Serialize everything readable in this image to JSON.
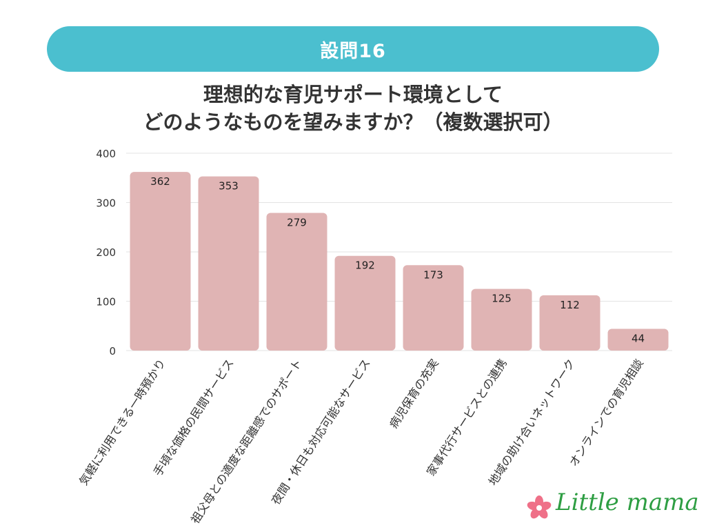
{
  "header": {
    "banner": "設問16"
  },
  "title": {
    "line1": "理想的な育児サポート環境として",
    "line2": "どのようなものを望みますか？（複数選択可）"
  },
  "chart_data": {
    "type": "bar",
    "categories": [
      "気軽に利用できる一時預かり",
      "手頃な価格の民間サービス",
      "祖父母との適度な距離感でのサポート",
      "夜間・休日も対応可能なサービス",
      "病児保育の充実",
      "家事代行サービスとの連携",
      "地域の助け合いネットワーク",
      "オンラインでの育児相談"
    ],
    "values": [
      362,
      353,
      279,
      192,
      173,
      125,
      112,
      44
    ],
    "ylim": [
      0,
      400
    ],
    "yticks": [
      0,
      100,
      200,
      300,
      400
    ],
    "grid": true,
    "bar_color": "#e0b4b4"
  },
  "logo": {
    "text": "Little mama",
    "flower_color": "#ef7088",
    "text_color": "#2e9e43"
  }
}
